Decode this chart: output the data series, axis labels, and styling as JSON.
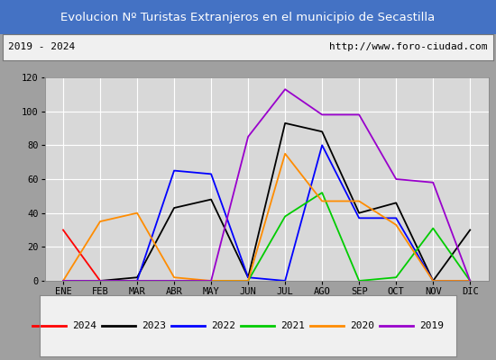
{
  "title": "Evolucion Nº Turistas Extranjeros en el municipio de Secastilla",
  "subtitle_left": "2019 - 2024",
  "subtitle_right": "http://www.foro-ciudad.com",
  "months": [
    "ENE",
    "FEB",
    "MAR",
    "ABR",
    "MAY",
    "JUN",
    "JUL",
    "AGO",
    "SEP",
    "OCT",
    "NOV",
    "DIC"
  ],
  "title_bg": "#4472c4",
  "title_color": "#ffffff",
  "plot_bg": "#d8d8d8",
  "grid_color": "#ffffff",
  "outer_bg": "#a0a0a0",
  "series_order": [
    "2024",
    "2023",
    "2022",
    "2021",
    "2020",
    "2019"
  ],
  "series": {
    "2024": {
      "color": "#ff0000",
      "values": [
        30,
        0,
        null,
        null,
        null,
        null,
        null,
        null,
        null,
        null,
        null,
        null
      ]
    },
    "2023": {
      "color": "#000000",
      "values": [
        0,
        0,
        2,
        43,
        48,
        2,
        93,
        88,
        40,
        46,
        0,
        30
      ]
    },
    "2022": {
      "color": "#0000ff",
      "values": [
        0,
        0,
        0,
        65,
        63,
        2,
        0,
        80,
        37,
        37,
        0,
        0
      ]
    },
    "2021": {
      "color": "#00cc00",
      "values": [
        0,
        0,
        0,
        0,
        0,
        0,
        38,
        52,
        0,
        2,
        31,
        0
      ]
    },
    "2020": {
      "color": "#ff8c00",
      "values": [
        0,
        35,
        40,
        2,
        0,
        0,
        75,
        47,
        47,
        33,
        0,
        0
      ]
    },
    "2019": {
      "color": "#9900cc",
      "values": [
        0,
        0,
        0,
        0,
        0,
        85,
        113,
        98,
        98,
        60,
        58,
        0
      ]
    }
  },
  "ylim": [
    0,
    120
  ],
  "yticks": [
    0,
    20,
    40,
    60,
    80,
    100,
    120
  ]
}
